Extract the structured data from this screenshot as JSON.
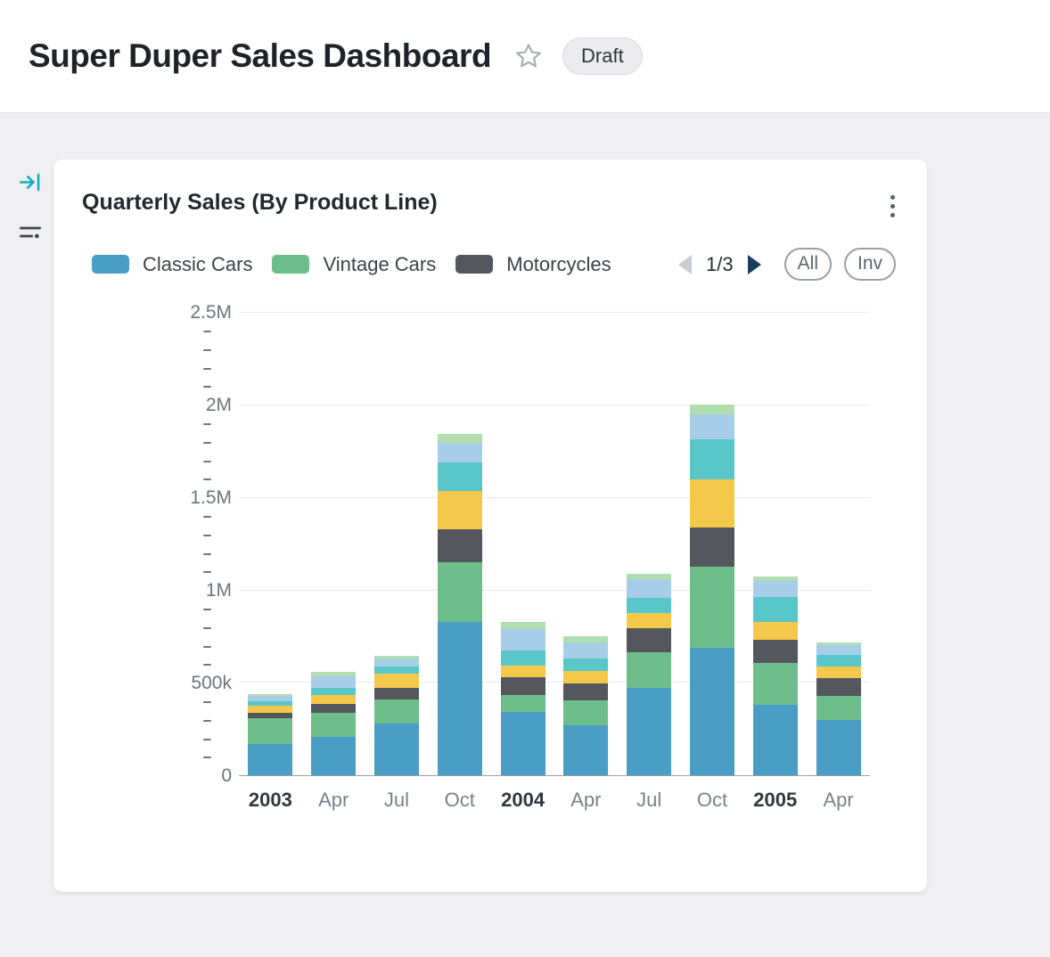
{
  "header": {
    "title": "Super Duper Sales Dashboard",
    "badge": "Draft"
  },
  "card": {
    "title": "Quarterly Sales (By Product Line)",
    "legend_page": "1/3",
    "all_label": "All",
    "inv_label": "Inv"
  },
  "icons": {
    "star": "☆",
    "kebab": "⋮",
    "legend_prev": "◀",
    "legend_next": "▶",
    "collapse_panel": "→|",
    "filter": "≡"
  },
  "colors": {
    "accent_teal": "#14AEBC",
    "pager_next": "#1D3C5D",
    "pager_prev": "#C9CDD2",
    "grid": "#E8E9EB",
    "axis": "#9AA0A6",
    "page_background": "#F0F0F2"
  },
  "chart_data": {
    "type": "bar",
    "stacked": true,
    "title": "Quarterly Sales (By Product Line)",
    "legend_position": "top",
    "grid": true,
    "categories": [
      "2003",
      "Apr",
      "Jul",
      "Oct",
      "2004",
      "Apr",
      "Jul",
      "Oct",
      "2005",
      "Apr"
    ],
    "category_emphasis": [
      true,
      false,
      false,
      false,
      true,
      false,
      false,
      false,
      true,
      false
    ],
    "ylim": [
      0,
      2500000
    ],
    "yticks": [
      {
        "value": 0,
        "label": "0"
      },
      {
        "value": 500000,
        "label": "500k"
      },
      {
        "value": 1000000,
        "label": "1M"
      },
      {
        "value": 1500000,
        "label": "1.5M"
      },
      {
        "value": 2000000,
        "label": "2M"
      },
      {
        "value": 2500000,
        "label": "2.5M"
      }
    ],
    "minor_tick_step": 100000,
    "series": [
      {
        "name": "Classic Cars",
        "in_legend": true,
        "color": "#4A9DC5",
        "values": [
          170000,
          210000,
          280000,
          830000,
          345000,
          270000,
          475000,
          690000,
          380000,
          300000
        ]
      },
      {
        "name": "Vintage Cars",
        "in_legend": true,
        "color": "#6EBE8B",
        "values": [
          140000,
          130000,
          130000,
          320000,
          90000,
          135000,
          190000,
          440000,
          230000,
          130000
        ]
      },
      {
        "name": "Motorcycles",
        "in_legend": true,
        "color": "#54585E",
        "values": [
          30000,
          45000,
          65000,
          180000,
          95000,
          90000,
          130000,
          210000,
          125000,
          95000
        ]
      },
      {
        "name": "",
        "in_legend": false,
        "color": "#F4C94B",
        "values": [
          35000,
          50000,
          75000,
          210000,
          65000,
          70000,
          85000,
          260000,
          95000,
          65000
        ]
      },
      {
        "name": "",
        "in_legend": false,
        "color": "#59C7C9",
        "values": [
          25000,
          40000,
          40000,
          150000,
          80000,
          65000,
          80000,
          215000,
          135000,
          60000
        ]
      },
      {
        "name": "",
        "in_legend": false,
        "color": "#A6CEE9",
        "values": [
          30000,
          60000,
          40000,
          110000,
          115000,
          90000,
          100000,
          135000,
          85000,
          55000
        ]
      },
      {
        "name": "",
        "in_legend": false,
        "color": "#B2DDAE",
        "values": [
          10000,
          25000,
          15000,
          48000,
          40000,
          35000,
          30000,
          55000,
          25000,
          15000
        ]
      }
    ]
  }
}
